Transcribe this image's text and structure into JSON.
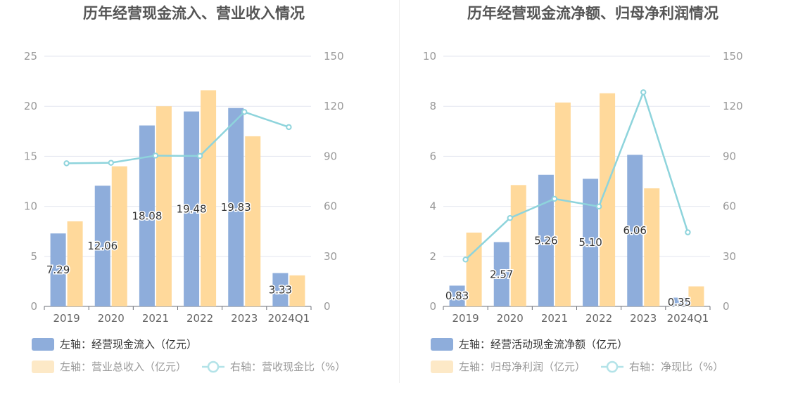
{
  "chart_data": [
    {
      "type": "bar",
      "title": "历年经营现金流入、营业收入情况",
      "categories": [
        "2019",
        "2020",
        "2021",
        "2022",
        "2023",
        "2024Q1"
      ],
      "left_axis": {
        "ylim": [
          0,
          25
        ],
        "ticks": [
          "0",
          "5",
          "10",
          "15",
          "20",
          "25"
        ]
      },
      "right_axis": {
        "ylim": [
          0,
          150
        ],
        "ticks": [
          "0",
          "30",
          "60",
          "90",
          "120",
          "150"
        ]
      },
      "grid": true,
      "legend_position": "bottom-left",
      "series": [
        {
          "name": "左轴：经营现金流入（亿元）",
          "type": "bar",
          "axis": "left",
          "color": "#8eaddb",
          "values": [
            7.29,
            12.06,
            18.08,
            19.48,
            19.83,
            3.33
          ],
          "labels": [
            "7.29",
            "12.06",
            "18.08",
            "19.48",
            "19.83",
            "3.33"
          ]
        },
        {
          "name": "左轴：营业总收入（亿元）",
          "type": "bar",
          "axis": "left",
          "color": "#ffd99b",
          "legend_color": "#fde9c7",
          "values": [
            8.5,
            14.0,
            20.0,
            21.6,
            17.0,
            3.1
          ]
        },
        {
          "name": "右轴：营收现金比（%）",
          "type": "line",
          "axis": "right",
          "color": "#8ed4dc",
          "values": [
            85.8,
            86.1,
            90.4,
            90.2,
            116.6,
            107.5
          ]
        }
      ]
    },
    {
      "type": "bar",
      "title": "历年经营现金流净额、归母净利润情况",
      "categories": [
        "2019",
        "2020",
        "2021",
        "2022",
        "2023",
        "2024Q1"
      ],
      "left_axis": {
        "ylim": [
          0,
          10
        ],
        "ticks": [
          "0",
          "2",
          "4",
          "6",
          "8",
          "10"
        ]
      },
      "right_axis": {
        "ylim": [
          0,
          150
        ],
        "ticks": [
          "0",
          "30",
          "60",
          "90",
          "120",
          "150"
        ]
      },
      "grid": true,
      "legend_position": "bottom-left",
      "series": [
        {
          "name": "左轴：经营活动现金流净额（亿元）",
          "type": "bar",
          "axis": "left",
          "color": "#8eaddb",
          "values": [
            0.83,
            2.57,
            5.26,
            5.1,
            6.06,
            0.35
          ],
          "labels": [
            "0.83",
            "2.57",
            "5.26",
            "5.10",
            "6.06",
            "0.35"
          ]
        },
        {
          "name": "左轴：归母净利润（亿元）",
          "type": "bar",
          "axis": "left",
          "color": "#ffd99b",
          "legend_color": "#fde9c7",
          "values": [
            2.95,
            4.85,
            8.15,
            8.52,
            4.72,
            0.8
          ]
        },
        {
          "name": "右轴：净现比（%）",
          "type": "line",
          "axis": "right",
          "color": "#8ed4dc",
          "values": [
            28.1,
            53.0,
            64.5,
            59.9,
            128.4,
            44.4
          ]
        }
      ]
    }
  ]
}
